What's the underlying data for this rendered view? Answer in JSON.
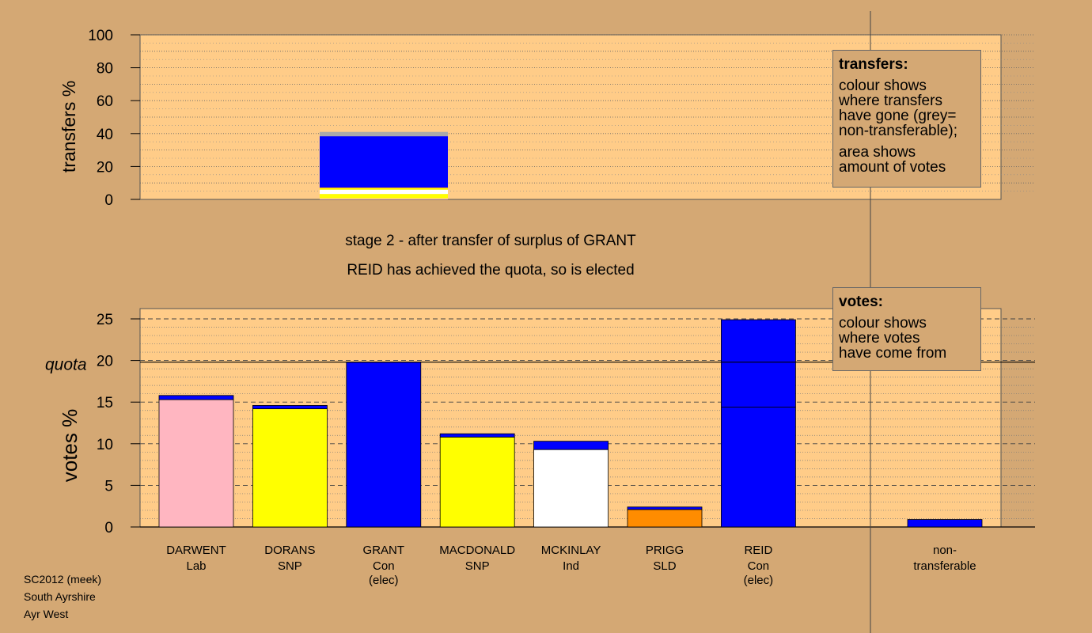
{
  "chart_data": [
    {
      "type": "bar",
      "stacked": true,
      "ylabel": "transfers %",
      "ylim": [
        0,
        100
      ],
      "yticks": [
        0,
        20,
        40,
        60,
        80,
        100
      ],
      "grid": true,
      "bars": [
        {
          "segments": [
            {
              "color": "#ffb6c1",
              "value": 0.6
            },
            {
              "color": "#ffff00",
              "value": 2.7
            },
            {
              "color": "#ffffff",
              "value": 2.6
            },
            {
              "color": "#ffff00",
              "value": 1.0
            },
            {
              "color": "#ff8c00",
              "value": 0.3
            },
            {
              "color": "#0000ff",
              "value": 31.2
            },
            {
              "color": "#aaaaaa",
              "value": 2.6
            }
          ]
        }
      ]
    },
    {
      "type": "bar",
      "stacked": true,
      "ylabel": "votes %",
      "ylim": [
        0,
        25
      ],
      "yticks": [
        0,
        5,
        10,
        15,
        20,
        25
      ],
      "quota": 19.8,
      "quota_label": "quota",
      "grid": true,
      "categories": [
        {
          "name": "DARWENT",
          "party": "Lab",
          "note": "",
          "segments": [
            {
              "color": "#ffb6c1",
              "value": 15.3
            },
            {
              "color": "#0000ff",
              "value": 0.5
            }
          ]
        },
        {
          "name": "DORANS",
          "party": "SNP",
          "note": "",
          "segments": [
            {
              "color": "#ffff00",
              "value": 14.2
            },
            {
              "color": "#0000ff",
              "value": 0.4
            }
          ]
        },
        {
          "name": "GRANT",
          "party": "Con",
          "note": "(elec)",
          "segments": [
            {
              "color": "#0000ff",
              "value": 19.8
            }
          ]
        },
        {
          "name": "MACDONALD",
          "party": "SNP",
          "note": "",
          "segments": [
            {
              "color": "#ffff00",
              "value": 10.8
            },
            {
              "color": "#0000ff",
              "value": 0.4
            }
          ]
        },
        {
          "name": "MCKINLAY",
          "party": "Ind",
          "note": "",
          "segments": [
            {
              "color": "#ffffff",
              "value": 9.3
            },
            {
              "color": "#0000ff",
              "value": 1.0
            }
          ]
        },
        {
          "name": "PRIGG",
          "party": "SLD",
          "note": "",
          "segments": [
            {
              "color": "#ff8c00",
              "value": 2.1
            },
            {
              "color": "#0000ff",
              "value": 0.3
            }
          ]
        },
        {
          "name": "REID",
          "party": "Con",
          "note": "(elec)",
          "segments": [
            {
              "color": "#0000ff",
              "value": 14.4
            },
            {
              "color": "#0000ff",
              "value": 10.5
            }
          ]
        }
      ],
      "non_transferable": {
        "label_1": "non-",
        "label_2": "transferable",
        "value": 0.9,
        "color": "#0000ff"
      }
    }
  ],
  "stage": {
    "title": "stage 2 - after transfer of surplus of GRANT",
    "subtitle": "REID has achieved the quota, so is elected"
  },
  "legend_transfers": {
    "title": "transfers:",
    "text1": "colour shows\nwhere transfers\nhave gone (grey=\nnon-transferable);",
    "text2": "area shows\namount of votes"
  },
  "legend_votes": {
    "title": "votes:",
    "text1": "colour shows\nwhere votes\nhave come from"
  },
  "footer": {
    "line1": "SC2012 (meek)",
    "line2": "South Ayrshire",
    "line3": "Ayr West"
  },
  "colors": {
    "background": "#d4a874",
    "plot": "#ffcc88",
    "con": "#0000ff",
    "lab": "#ffb6c1",
    "snp": "#ffff00",
    "ind": "#ffffff",
    "sld": "#ff8c00",
    "non_transferable": "#aaaaaa"
  }
}
